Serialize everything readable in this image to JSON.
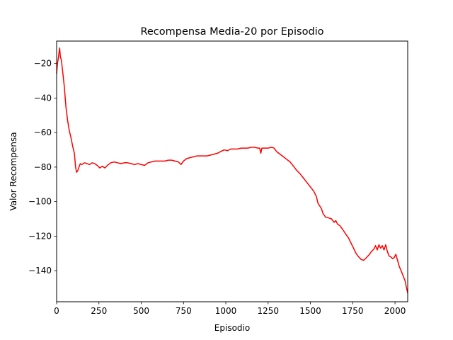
{
  "chart_data": {
    "type": "line",
    "title": "Recompensa Media-20 por Episodio",
    "xlabel": "Episodio",
    "ylabel": "Valor Recompensa",
    "xlim": [
      0,
      2075
    ],
    "ylim": [
      -158,
      -7
    ],
    "xticks": [
      0,
      250,
      500,
      750,
      1000,
      1250,
      1500,
      1750,
      2000
    ],
    "yticks": [
      -20,
      -40,
      -60,
      -80,
      -100,
      -120,
      -140
    ],
    "grid": false,
    "series": [
      {
        "color": "#ff0000",
        "points": [
          [
            0,
            -26
          ],
          [
            5,
            -20
          ],
          [
            10,
            -17
          ],
          [
            15,
            -13
          ],
          [
            18,
            -11
          ],
          [
            22,
            -16
          ],
          [
            28,
            -18
          ],
          [
            35,
            -24
          ],
          [
            45,
            -33
          ],
          [
            55,
            -45
          ],
          [
            65,
            -53
          ],
          [
            75,
            -59
          ],
          [
            85,
            -63
          ],
          [
            95,
            -68
          ],
          [
            105,
            -72
          ],
          [
            112,
            -80
          ],
          [
            118,
            -83
          ],
          [
            125,
            -82
          ],
          [
            132,
            -80
          ],
          [
            140,
            -78
          ],
          [
            150,
            -78.5
          ],
          [
            165,
            -77.5
          ],
          [
            180,
            -78
          ],
          [
            195,
            -78.5
          ],
          [
            210,
            -77.5
          ],
          [
            225,
            -78
          ],
          [
            240,
            -79
          ],
          [
            255,
            -80.5
          ],
          [
            270,
            -79.5
          ],
          [
            285,
            -80.5
          ],
          [
            300,
            -79
          ],
          [
            320,
            -77.5
          ],
          [
            340,
            -77
          ],
          [
            360,
            -77.5
          ],
          [
            380,
            -78
          ],
          [
            400,
            -77.5
          ],
          [
            420,
            -77.5
          ],
          [
            440,
            -78
          ],
          [
            460,
            -78.5
          ],
          [
            480,
            -78
          ],
          [
            500,
            -78.5
          ],
          [
            520,
            -79
          ],
          [
            540,
            -77.5
          ],
          [
            560,
            -77
          ],
          [
            580,
            -76.5
          ],
          [
            600,
            -76.5
          ],
          [
            620,
            -76.5
          ],
          [
            640,
            -76.5
          ],
          [
            660,
            -76
          ],
          [
            680,
            -76
          ],
          [
            700,
            -76.5
          ],
          [
            720,
            -77
          ],
          [
            735,
            -78.5
          ],
          [
            750,
            -76.5
          ],
          [
            770,
            -75
          ],
          [
            790,
            -74.5
          ],
          [
            810,
            -74
          ],
          [
            830,
            -73.5
          ],
          [
            850,
            -73.5
          ],
          [
            870,
            -73.5
          ],
          [
            890,
            -73.5
          ],
          [
            910,
            -73
          ],
          [
            930,
            -72.5
          ],
          [
            950,
            -72
          ],
          [
            970,
            -71
          ],
          [
            990,
            -70
          ],
          [
            1010,
            -70.5
          ],
          [
            1030,
            -69.5
          ],
          [
            1050,
            -69.5
          ],
          [
            1070,
            -69.5
          ],
          [
            1090,
            -69
          ],
          [
            1110,
            -69
          ],
          [
            1130,
            -69
          ],
          [
            1150,
            -68.5
          ],
          [
            1170,
            -68.5
          ],
          [
            1190,
            -69
          ],
          [
            1200,
            -69
          ],
          [
            1207,
            -72
          ],
          [
            1213,
            -69
          ],
          [
            1230,
            -69
          ],
          [
            1250,
            -69
          ],
          [
            1270,
            -68.5
          ],
          [
            1285,
            -69
          ],
          [
            1300,
            -71
          ],
          [
            1320,
            -72.5
          ],
          [
            1340,
            -74
          ],
          [
            1360,
            -75.5
          ],
          [
            1380,
            -77
          ],
          [
            1400,
            -79.5
          ],
          [
            1420,
            -82
          ],
          [
            1440,
            -84
          ],
          [
            1460,
            -86.5
          ],
          [
            1480,
            -89
          ],
          [
            1500,
            -91.5
          ],
          [
            1520,
            -94
          ],
          [
            1535,
            -97
          ],
          [
            1545,
            -101
          ],
          [
            1555,
            -102.5
          ],
          [
            1565,
            -104
          ],
          [
            1575,
            -107
          ],
          [
            1590,
            -109
          ],
          [
            1610,
            -109.5
          ],
          [
            1625,
            -110
          ],
          [
            1640,
            -112
          ],
          [
            1650,
            -111
          ],
          [
            1660,
            -113
          ],
          [
            1675,
            -114
          ],
          [
            1690,
            -116
          ],
          [
            1710,
            -119
          ],
          [
            1725,
            -121
          ],
          [
            1740,
            -124
          ],
          [
            1755,
            -127
          ],
          [
            1770,
            -130
          ],
          [
            1785,
            -132
          ],
          [
            1800,
            -133.5
          ],
          [
            1815,
            -134
          ],
          [
            1830,
            -132.5
          ],
          [
            1845,
            -131
          ],
          [
            1860,
            -129
          ],
          [
            1875,
            -127.5
          ],
          [
            1885,
            -125.5
          ],
          [
            1895,
            -128
          ],
          [
            1905,
            -125
          ],
          [
            1915,
            -127
          ],
          [
            1925,
            -125.5
          ],
          [
            1935,
            -128
          ],
          [
            1945,
            -125
          ],
          [
            1955,
            -129
          ],
          [
            1965,
            -131.5
          ],
          [
            1975,
            -132
          ],
          [
            1985,
            -133
          ],
          [
            1995,
            -132.5
          ],
          [
            2005,
            -130.5
          ],
          [
            2015,
            -134
          ],
          [
            2025,
            -137.5
          ],
          [
            2040,
            -141
          ],
          [
            2050,
            -143.5
          ],
          [
            2060,
            -146
          ],
          [
            2068,
            -150
          ],
          [
            2075,
            -153
          ]
        ]
      }
    ]
  }
}
